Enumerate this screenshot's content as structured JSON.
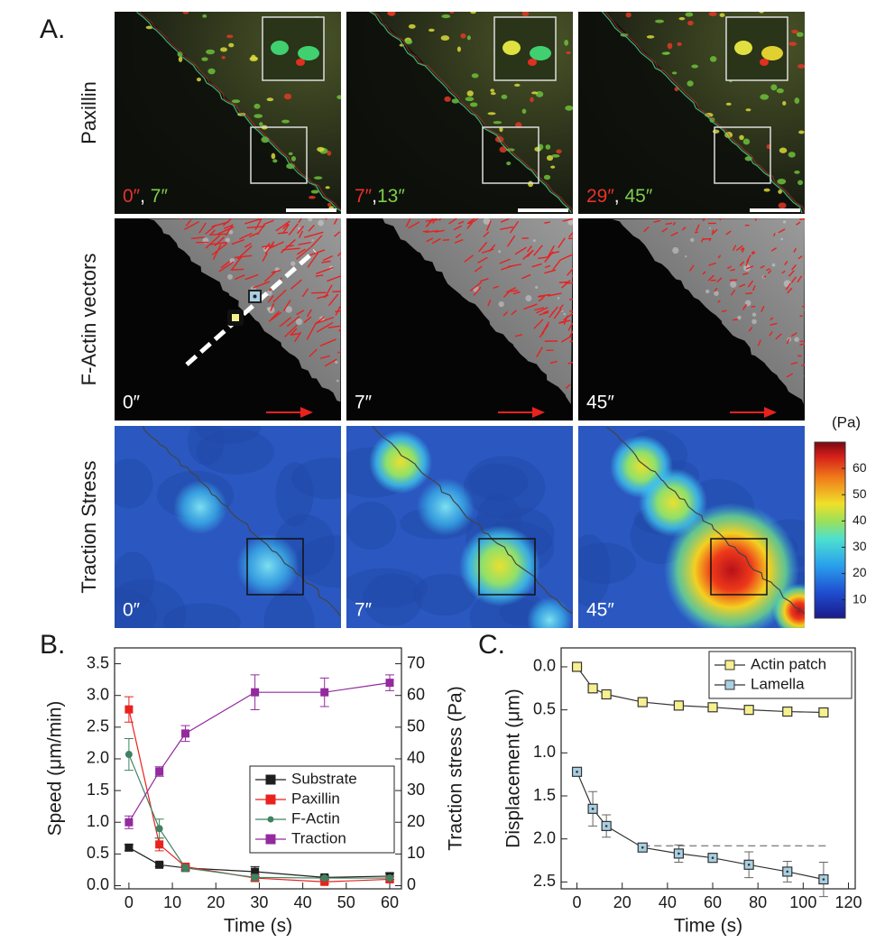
{
  "panel_a": {
    "label": "A.",
    "row_labels": [
      "Paxillin",
      "F-Actin vectors",
      "Traction Stress"
    ],
    "time_labels": [
      [
        [
          {
            "text": "0″",
            "color": "#e8322c"
          },
          {
            "text": ", ",
            "color": "#ffffff"
          },
          {
            "text": "7″",
            "color": "#7ccf4a"
          }
        ],
        [
          {
            "text": "7″",
            "color": "#e8322c"
          },
          {
            "text": ",",
            "color": "#ffffff"
          },
          {
            "text": "13″",
            "color": "#7ccf4a"
          }
        ],
        [
          {
            "text": "29″",
            "color": "#e8322c"
          },
          {
            "text": ", ",
            "color": "#ffffff"
          },
          {
            "text": "45″",
            "color": "#7ccf4a"
          }
        ]
      ],
      [
        "0″",
        "7″",
        "45″"
      ],
      [
        "0″",
        "7″",
        "45″"
      ]
    ],
    "colorbar": {
      "unit": "(Pa)",
      "lim": [
        3,
        70
      ],
      "ticks": [
        10,
        20,
        30,
        40,
        50,
        60
      ]
    }
  },
  "chart_data": [
    {
      "type": "line",
      "label": "B.",
      "x_label": "Time (s)",
      "y_label": "Speed (μm/min)",
      "y2_label": "Traction stress (Pa)",
      "x": [
        0,
        7,
        13,
        29,
        45,
        60
      ],
      "xlim": [
        -3.3,
        62.7
      ],
      "xticks": [
        0,
        10,
        20,
        30,
        40,
        50,
        60
      ],
      "ylim": [
        -0.05,
        3.75
      ],
      "yticks": [
        {
          "value": 0,
          "label": "0.0"
        },
        0.5,
        {
          "value": 1,
          "label": "1.0"
        },
        1.5,
        {
          "value": 2,
          "label": "2.0"
        },
        2.5,
        {
          "value": 3,
          "label": "3.0"
        },
        3.5
      ],
      "y2lim": [
        -1,
        75
      ],
      "y2ticks": [
        0,
        10,
        20,
        30,
        40,
        50,
        60,
        70
      ],
      "legend": "lower right",
      "series": [
        {
          "name": "Substrate",
          "color": "#1e1e1e",
          "marker": "square",
          "values": [
            0.6,
            0.33,
            0.28,
            0.22,
            0.13,
            0.15
          ],
          "errors": [
            0.05,
            0.03,
            0.03,
            0.08,
            0.03,
            0.05
          ]
        },
        {
          "name": "Paxillin",
          "color": "#e8221f",
          "marker": "square",
          "values": [
            2.78,
            0.65,
            0.3,
            0.12,
            0.06,
            0.1
          ],
          "errors": [
            0.2,
            0.1,
            0.05,
            0.05,
            0.03,
            0.04
          ]
        },
        {
          "name": "F-Actin",
          "color": "#3f8262",
          "marker": "circle",
          "values": [
            2.07,
            0.9,
            0.28,
            0.13,
            0.12,
            0.12
          ],
          "errors": [
            0.25,
            0.15,
            0.05,
            0.05,
            0.03,
            0.03
          ]
        },
        {
          "name": "Traction",
          "color": "#932a9e",
          "marker": "square",
          "axis": "y2",
          "values": [
            20,
            36,
            48,
            61,
            61,
            64
          ],
          "errors": [
            2,
            1.5,
            2.5,
            5.5,
            4.5,
            2.5
          ]
        }
      ]
    },
    {
      "type": "line",
      "label": "C.",
      "x_label": "Time (s)",
      "y_label": "Displacement (μm)",
      "x": [
        0,
        7,
        13,
        29,
        45,
        60,
        76,
        93,
        109
      ],
      "xlim": [
        -7,
        123
      ],
      "xticks": [
        0,
        20,
        40,
        60,
        80,
        100,
        120
      ],
      "ylim": [
        -0.22,
        2.58
      ],
      "y_inverted": true,
      "yticks": [
        {
          "value": 0,
          "label": "0.0"
        },
        0.5,
        {
          "value": 1,
          "label": "1.0"
        },
        1.5,
        {
          "value": 2,
          "label": "2.0"
        },
        2.5
      ],
      "legend": "upper right",
      "reference_line": {
        "y": 2.08,
        "x": [
          29,
          110
        ],
        "color": "#888888"
      },
      "series": [
        {
          "name": "Actin patch",
          "color": "#333333",
          "marker": "square",
          "marker_fill": "#f7f08e",
          "values": [
            0,
            0.25,
            0.32,
            0.41,
            0.45,
            0.47,
            0.5,
            0.52,
            0.53
          ],
          "errors": [
            0.02,
            0.03,
            0.03,
            0.03,
            0.03,
            0.03,
            0.03,
            0.03,
            0.03
          ]
        },
        {
          "name": "Lamella",
          "color": "#333333",
          "marker": "square",
          "marker_fill": "#a9cfe3",
          "values": [
            1.22,
            1.65,
            1.85,
            2.1,
            2.17,
            2.22,
            2.3,
            2.38,
            2.47
          ],
          "errors": [
            0.02,
            0.2,
            0.13,
            0.03,
            0.1,
            0.05,
            0.15,
            0.12,
            0.2
          ]
        }
      ]
    }
  ]
}
